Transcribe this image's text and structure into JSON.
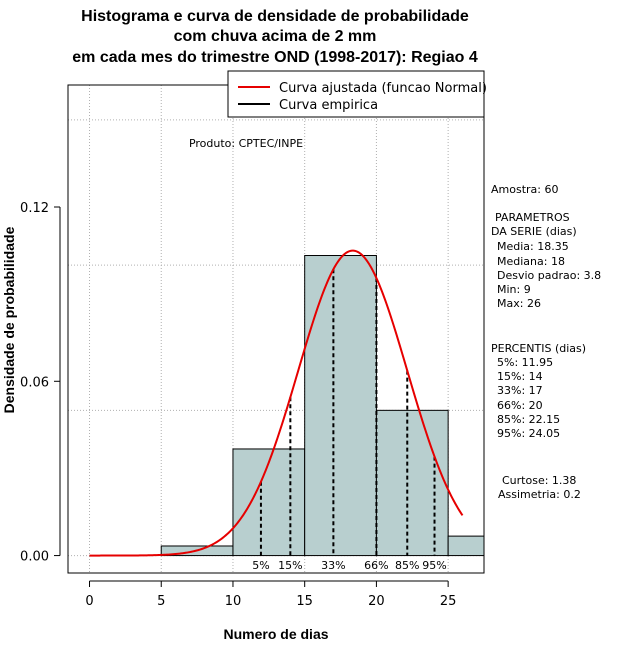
{
  "colors": {
    "bar_fill": "#b8cfcf",
    "curve": "#e60000",
    "grid": "#b0b0b0",
    "axis": "#000000"
  },
  "chart_data": {
    "type": "bar",
    "title_lines": [
      "Histograma e curva de densidade de probabilidade",
      "com chuva acima de 2 mm",
      "em cada mes do trimestre OND (1998-2017): Regiao 4"
    ],
    "xlabel": "Numero de dias",
    "ylabel": "Densidade de probabilidade",
    "xlim": [
      -1.5,
      27.5
    ],
    "ylim": [
      -0.006,
      0.162
    ],
    "x_ticks": [
      0,
      5,
      10,
      15,
      20,
      25
    ],
    "y_ticks": [
      0.0,
      0.06,
      0.12
    ],
    "y_tick_labels": [
      "0.00",
      "0.06",
      "0.12"
    ],
    "x_grid": [
      0,
      5,
      10,
      15,
      20,
      25
    ],
    "y_grid": [
      0.0,
      0.05,
      0.1,
      0.15
    ],
    "bins": [
      {
        "from": 5,
        "to": 10,
        "density": 0.0033
      },
      {
        "from": 10,
        "to": 15,
        "density": 0.0367
      },
      {
        "from": 15,
        "to": 20,
        "density": 0.1033
      },
      {
        "from": 20,
        "to": 25,
        "density": 0.05
      },
      {
        "from": 25,
        "to": 27.5,
        "density": 0.0067
      }
    ],
    "normal_fit": {
      "mean": 18.35,
      "sd": 3.8,
      "from": 0,
      "to": 26
    },
    "percentile_lines": [
      {
        "x": 11.95,
        "label": "5%"
      },
      {
        "x": 14,
        "label": "15%"
      },
      {
        "x": 17,
        "label": "33%"
      },
      {
        "x": 20,
        "label": "66%"
      },
      {
        "x": 22.15,
        "label": "85%"
      },
      {
        "x": 24.05,
        "label": "95%"
      }
    ],
    "legend": {
      "placement": "top-right",
      "entries": [
        {
          "label": "Curva ajustada (funcao Normal)",
          "color": "#e60000"
        },
        {
          "label": "Curva empirica",
          "color": "#000000"
        }
      ]
    },
    "annotation": "Produto: CPTEC/INPE"
  },
  "side_panel": {
    "sample": "Amostra: 60",
    "params_title_1": "PARAMETROS",
    "params_title_2": "DA SERIE (dias)",
    "params": [
      "Media: 18.35",
      "Mediana: 18",
      "Desvio padrao: 3.8",
      "Min: 9",
      "Max: 26"
    ],
    "percentis_title": "PERCENTIS (dias)",
    "percentis": [
      "5%: 11.95",
      "15%: 14",
      "33%: 17",
      "66%: 20",
      "85%: 22.15",
      "95%: 24.05"
    ],
    "curtose": "Curtose: 1.38",
    "assimetria": "Assimetria: 0.2"
  }
}
